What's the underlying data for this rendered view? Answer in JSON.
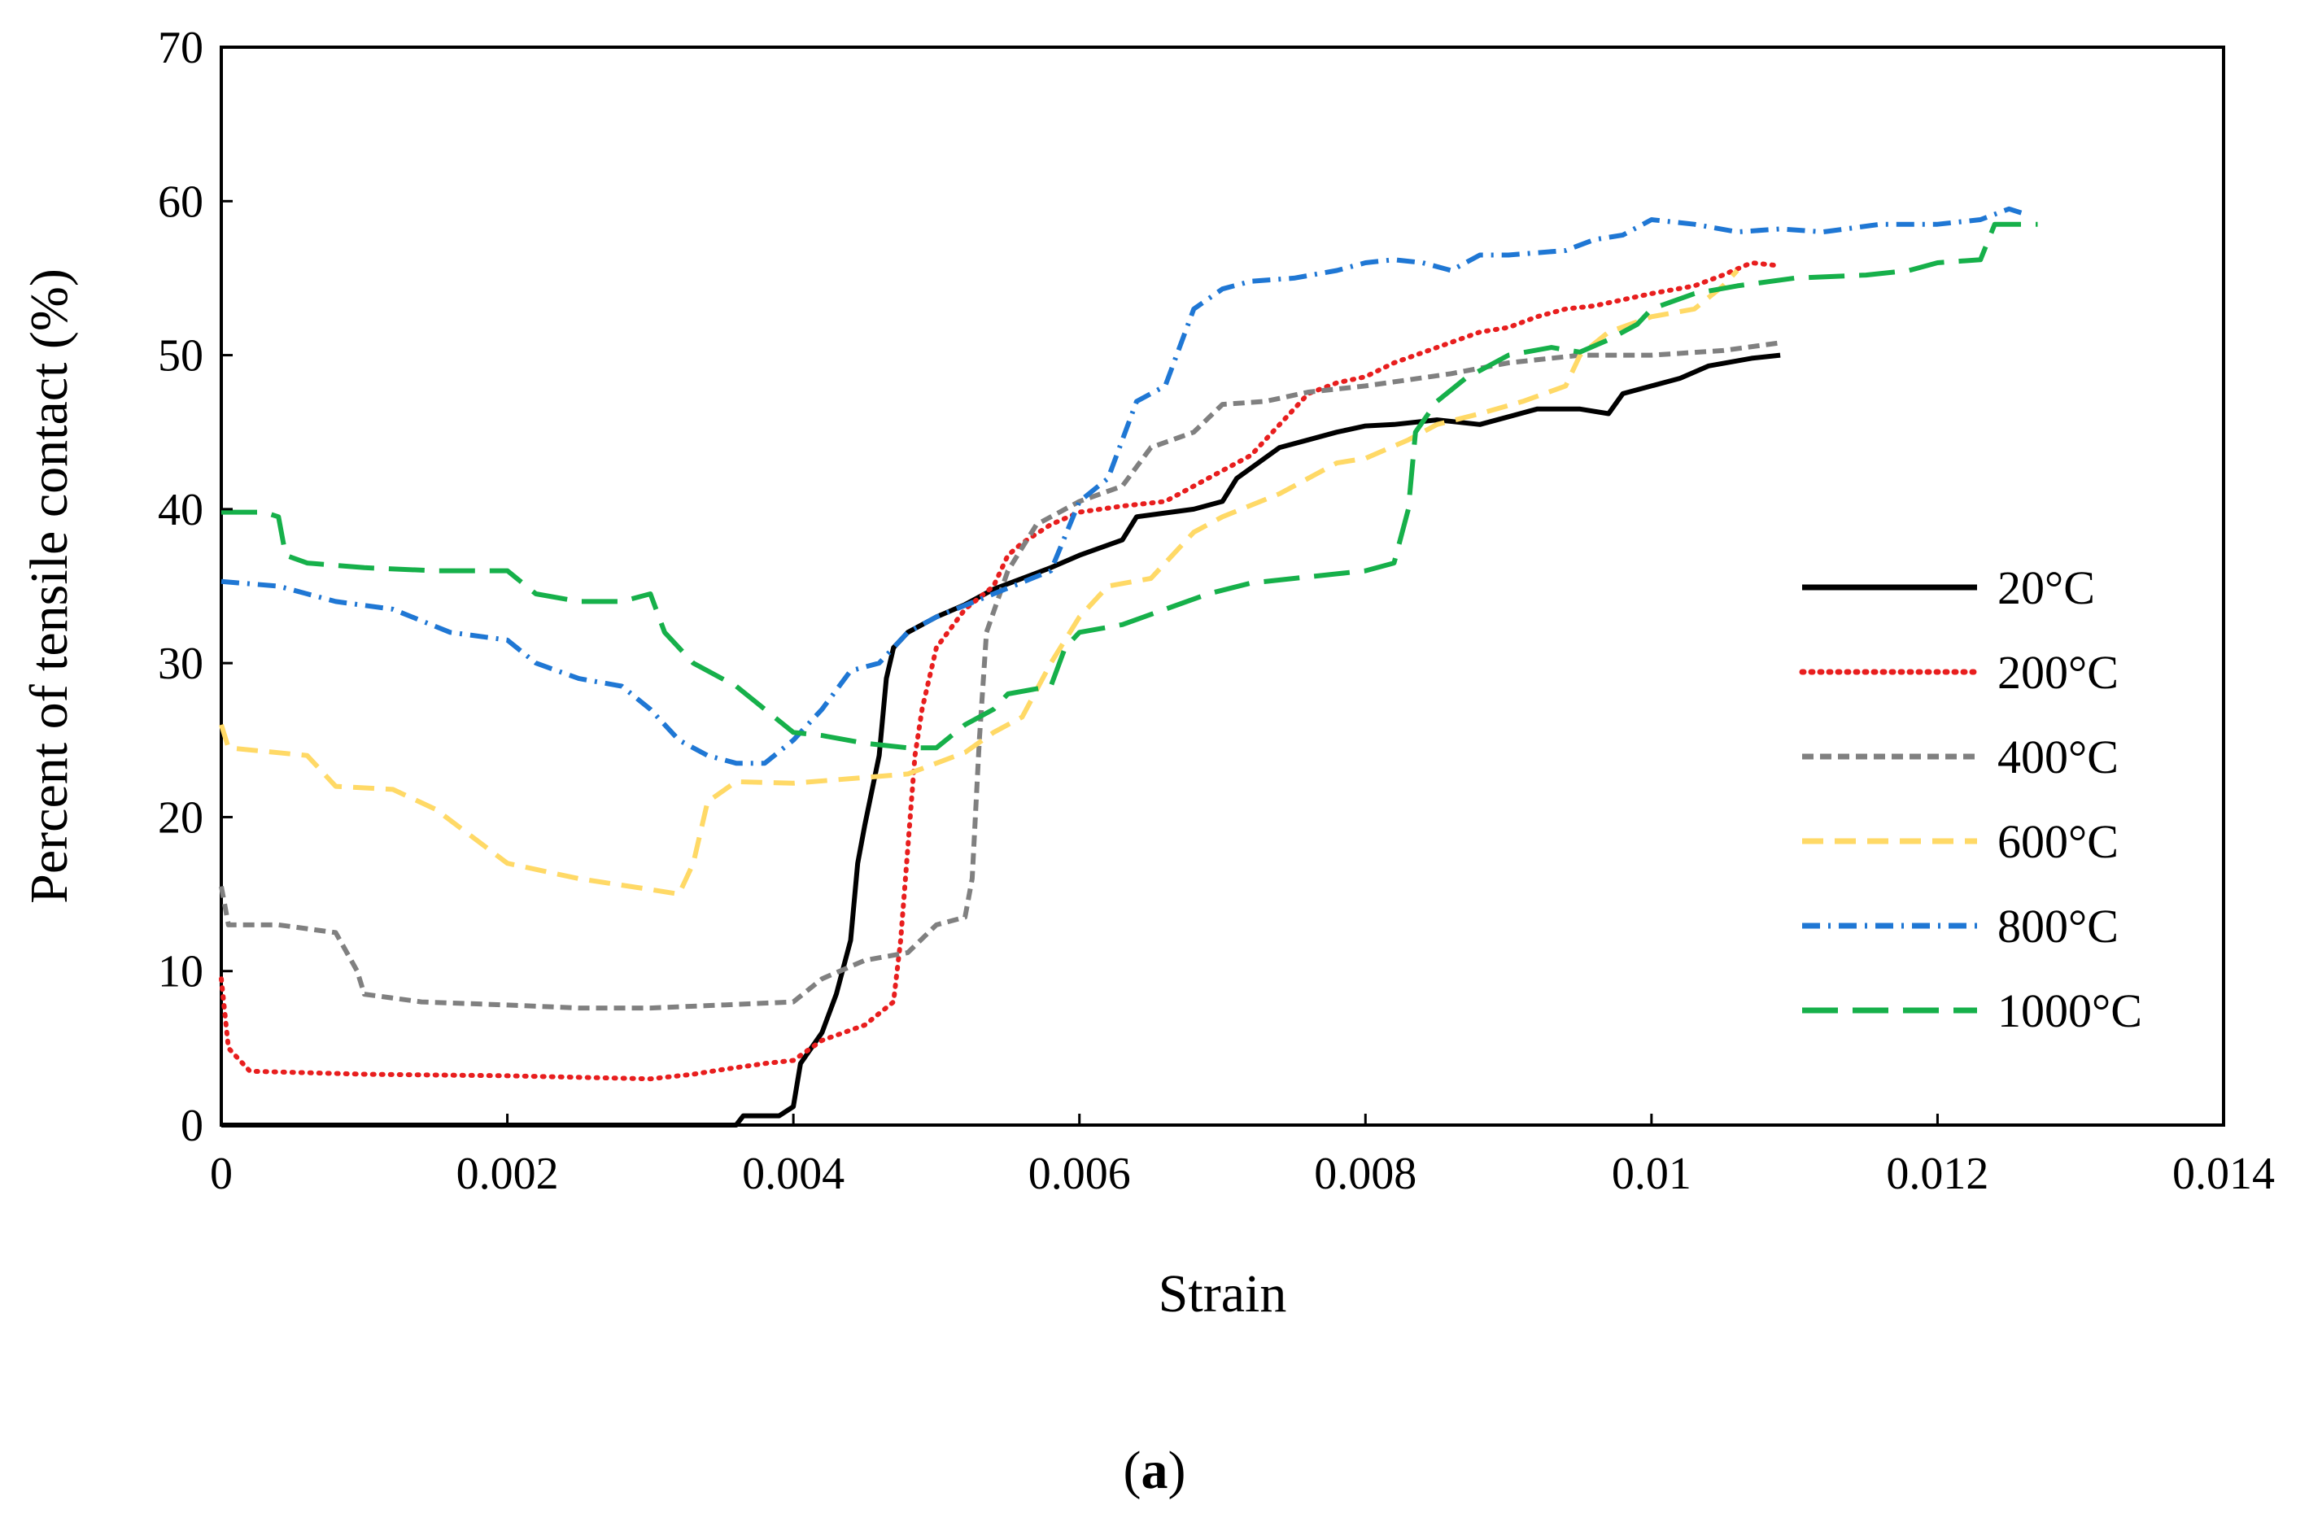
{
  "chart_data": {
    "type": "line",
    "title": "",
    "xlabel": "Strain",
    "ylabel": "Percent of  tensile contact (%)",
    "xlim": [
      0,
      0.014
    ],
    "ylim": [
      0,
      70
    ],
    "x_ticks": [
      0,
      0.002,
      0.004,
      0.006,
      0.008,
      0.01,
      0.012,
      0.014
    ],
    "x_tick_labels": [
      "0",
      "0.002",
      "0.004",
      "0.006",
      "0.008",
      "0.01",
      "0.012",
      "0.014"
    ],
    "y_ticks": [
      0,
      10,
      20,
      30,
      40,
      50,
      60,
      70
    ],
    "y_tick_labels": [
      "0",
      "10",
      "20",
      "30",
      "40",
      "50",
      "60",
      "70"
    ],
    "grid": false,
    "legend_position": "right",
    "caption": "a",
    "series": [
      {
        "name": "20°C",
        "color": "#000000",
        "dash": "solid",
        "points": [
          [
            0,
            0
          ],
          [
            0.0036,
            0
          ],
          [
            0.00365,
            0.6
          ],
          [
            0.0039,
            0.6
          ],
          [
            0.004,
            1.2
          ],
          [
            0.00405,
            4
          ],
          [
            0.0042,
            6
          ],
          [
            0.0043,
            8.5
          ],
          [
            0.0044,
            12
          ],
          [
            0.00445,
            17
          ],
          [
            0.0045,
            19.5
          ],
          [
            0.0046,
            24
          ],
          [
            0.00465,
            29
          ],
          [
            0.0047,
            31
          ],
          [
            0.0048,
            32
          ],
          [
            0.005,
            33
          ],
          [
            0.0052,
            33.8
          ],
          [
            0.0054,
            34.8
          ],
          [
            0.0056,
            35.5
          ],
          [
            0.0058,
            36.2
          ],
          [
            0.006,
            37
          ],
          [
            0.0063,
            38
          ],
          [
            0.0064,
            39.5
          ],
          [
            0.0068,
            40
          ],
          [
            0.007,
            40.5
          ],
          [
            0.0071,
            42
          ],
          [
            0.0074,
            44
          ],
          [
            0.0076,
            44.5
          ],
          [
            0.0078,
            45
          ],
          [
            0.008,
            45.4
          ],
          [
            0.0082,
            45.5
          ],
          [
            0.0085,
            45.8
          ],
          [
            0.0088,
            45.5
          ],
          [
            0.009,
            46
          ],
          [
            0.0092,
            46.5
          ],
          [
            0.0095,
            46.5
          ],
          [
            0.0097,
            46.2
          ],
          [
            0.0098,
            47.5
          ],
          [
            0.01,
            48
          ],
          [
            0.0102,
            48.5
          ],
          [
            0.0104,
            49.3
          ],
          [
            0.0107,
            49.8
          ],
          [
            0.0109,
            50
          ]
        ]
      },
      {
        "name": "200°C",
        "color": "#e81e1e",
        "dash": "dotted",
        "points": [
          [
            0,
            9.5
          ],
          [
            5e-05,
            5
          ],
          [
            0.0002,
            3.5
          ],
          [
            0.001,
            3.3
          ],
          [
            0.002,
            3.2
          ],
          [
            0.003,
            3
          ],
          [
            0.0033,
            3.3
          ],
          [
            0.0035,
            3.6
          ],
          [
            0.0038,
            4
          ],
          [
            0.004,
            4.2
          ],
          [
            0.0042,
            5.5
          ],
          [
            0.0045,
            6.5
          ],
          [
            0.0047,
            8
          ],
          [
            0.00475,
            12
          ],
          [
            0.0048,
            18
          ],
          [
            0.00485,
            24
          ],
          [
            0.0049,
            27
          ],
          [
            0.005,
            31
          ],
          [
            0.0052,
            33.5
          ],
          [
            0.0054,
            35
          ],
          [
            0.0055,
            37
          ],
          [
            0.0056,
            37.8
          ],
          [
            0.0058,
            39
          ],
          [
            0.006,
            39.8
          ],
          [
            0.0063,
            40.2
          ],
          [
            0.0066,
            40.5
          ],
          [
            0.0068,
            41.5
          ],
          [
            0.007,
            42.5
          ],
          [
            0.0072,
            43.5
          ],
          [
            0.0074,
            45.5
          ],
          [
            0.0076,
            47.5
          ],
          [
            0.0078,
            48.2
          ],
          [
            0.008,
            48.6
          ],
          [
            0.0082,
            49.5
          ],
          [
            0.0085,
            50.5
          ],
          [
            0.0088,
            51.5
          ],
          [
            0.009,
            51.8
          ],
          [
            0.0092,
            52.5
          ],
          [
            0.0094,
            53
          ],
          [
            0.0096,
            53.2
          ],
          [
            0.0098,
            53.6
          ],
          [
            0.01,
            54
          ],
          [
            0.0103,
            54.5
          ],
          [
            0.0105,
            55.2
          ],
          [
            0.0107,
            56
          ],
          [
            0.0109,
            55.8
          ]
        ]
      },
      {
        "name": "400°C",
        "color": "#808080",
        "dash": "dashed-short",
        "points": [
          [
            0,
            15.5
          ],
          [
            5e-05,
            13
          ],
          [
            0.0004,
            13
          ],
          [
            0.0008,
            12.5
          ],
          [
            0.00095,
            10
          ],
          [
            0.001,
            8.5
          ],
          [
            0.0014,
            8
          ],
          [
            0.002,
            7.8
          ],
          [
            0.0025,
            7.6
          ],
          [
            0.003,
            7.6
          ],
          [
            0.0035,
            7.8
          ],
          [
            0.004,
            8
          ],
          [
            0.0042,
            9.5
          ],
          [
            0.0045,
            10.7
          ],
          [
            0.0048,
            11.2
          ],
          [
            0.005,
            13
          ],
          [
            0.0052,
            13.5
          ],
          [
            0.00525,
            16
          ],
          [
            0.0053,
            25
          ],
          [
            0.00535,
            32
          ],
          [
            0.0055,
            36
          ],
          [
            0.0057,
            39
          ],
          [
            0.006,
            40.5
          ],
          [
            0.0063,
            41.5
          ],
          [
            0.0065,
            44
          ],
          [
            0.0068,
            45
          ],
          [
            0.007,
            46.8
          ],
          [
            0.0073,
            47
          ],
          [
            0.0076,
            47.6
          ],
          [
            0.008,
            48
          ],
          [
            0.0083,
            48.4
          ],
          [
            0.0086,
            48.8
          ],
          [
            0.009,
            49.5
          ],
          [
            0.0095,
            50
          ],
          [
            0.01,
            50
          ],
          [
            0.0105,
            50.3
          ],
          [
            0.0109,
            50.8
          ]
        ]
      },
      {
        "name": "600°C",
        "color": "#ffd966",
        "dash": "dashed",
        "points": [
          [
            0,
            26
          ],
          [
            5e-05,
            24.5
          ],
          [
            0.0006,
            24
          ],
          [
            0.0008,
            22
          ],
          [
            0.0012,
            21.8
          ],
          [
            0.0015,
            20.5
          ],
          [
            0.002,
            17
          ],
          [
            0.0025,
            16
          ],
          [
            0.003,
            15.3
          ],
          [
            0.0032,
            15
          ],
          [
            0.0033,
            17
          ],
          [
            0.0034,
            21
          ],
          [
            0.0036,
            22.3
          ],
          [
            0.004,
            22.2
          ],
          [
            0.0044,
            22.5
          ],
          [
            0.0048,
            22.8
          ],
          [
            0.005,
            23.5
          ],
          [
            0.0052,
            24.2
          ],
          [
            0.0054,
            25.5
          ],
          [
            0.0056,
            26.5
          ],
          [
            0.0058,
            30
          ],
          [
            0.006,
            33
          ],
          [
            0.0062,
            35
          ],
          [
            0.0065,
            35.5
          ],
          [
            0.0068,
            38.5
          ],
          [
            0.007,
            39.5
          ],
          [
            0.0074,
            41
          ],
          [
            0.0078,
            43
          ],
          [
            0.008,
            43.3
          ],
          [
            0.0083,
            44.5
          ],
          [
            0.0085,
            45.5
          ],
          [
            0.0088,
            46.2
          ],
          [
            0.0091,
            47
          ],
          [
            0.0094,
            48
          ],
          [
            0.0095,
            50
          ],
          [
            0.0097,
            51.5
          ],
          [
            0.01,
            52.5
          ],
          [
            0.0103,
            53
          ],
          [
            0.0105,
            54.5
          ],
          [
            0.0106,
            55.5
          ]
        ]
      },
      {
        "name": "800°C",
        "color": "#1f77d4",
        "dash": "dashdot",
        "points": [
          [
            0,
            35.3
          ],
          [
            0.0004,
            35
          ],
          [
            0.0006,
            34.5
          ],
          [
            0.0008,
            34
          ],
          [
            0.0012,
            33.5
          ],
          [
            0.0016,
            32
          ],
          [
            0.002,
            31.5
          ],
          [
            0.0022,
            30
          ],
          [
            0.0025,
            29
          ],
          [
            0.0028,
            28.5
          ],
          [
            0.003,
            27
          ],
          [
            0.0032,
            25
          ],
          [
            0.0034,
            24
          ],
          [
            0.0036,
            23.5
          ],
          [
            0.0038,
            23.5
          ],
          [
            0.004,
            25
          ],
          [
            0.0042,
            27
          ],
          [
            0.0044,
            29.5
          ],
          [
            0.0046,
            30
          ],
          [
            0.0048,
            32
          ],
          [
            0.005,
            33
          ],
          [
            0.0054,
            34.5
          ],
          [
            0.0058,
            36
          ],
          [
            0.006,
            40.5
          ],
          [
            0.0062,
            42
          ],
          [
            0.0063,
            44.5
          ],
          [
            0.0064,
            47
          ],
          [
            0.0066,
            48
          ],
          [
            0.0068,
            53
          ],
          [
            0.007,
            54.3
          ],
          [
            0.0072,
            54.8
          ],
          [
            0.0075,
            55
          ],
          [
            0.0078,
            55.5
          ],
          [
            0.008,
            56
          ],
          [
            0.0082,
            56.2
          ],
          [
            0.0084,
            56
          ],
          [
            0.0086,
            55.5
          ],
          [
            0.0088,
            56.5
          ],
          [
            0.009,
            56.5
          ],
          [
            0.0094,
            56.8
          ],
          [
            0.0096,
            57.5
          ],
          [
            0.0098,
            57.8
          ],
          [
            0.01,
            58.8
          ],
          [
            0.0103,
            58.5
          ],
          [
            0.0106,
            58
          ],
          [
            0.0109,
            58.2
          ],
          [
            0.0112,
            58
          ],
          [
            0.0116,
            58.5
          ],
          [
            0.012,
            58.5
          ],
          [
            0.0123,
            58.8
          ],
          [
            0.0125,
            59.5
          ],
          [
            0.0126,
            59.2
          ]
        ]
      },
      {
        "name": "1000°C",
        "color": "#16b04a",
        "dash": "dashed-long",
        "points": [
          [
            0,
            39.8
          ],
          [
            0.0003,
            39.8
          ],
          [
            0.0004,
            39.5
          ],
          [
            0.00045,
            37
          ],
          [
            0.0006,
            36.5
          ],
          [
            0.001,
            36.2
          ],
          [
            0.0015,
            36
          ],
          [
            0.002,
            36
          ],
          [
            0.0022,
            34.5
          ],
          [
            0.0025,
            34
          ],
          [
            0.0028,
            34
          ],
          [
            0.003,
            34.5
          ],
          [
            0.0031,
            32
          ],
          [
            0.0033,
            30
          ],
          [
            0.0036,
            28.5
          ],
          [
            0.0038,
            27
          ],
          [
            0.004,
            25.5
          ],
          [
            0.0042,
            25.3
          ],
          [
            0.0045,
            24.8
          ],
          [
            0.0048,
            24.5
          ],
          [
            0.005,
            24.5
          ],
          [
            0.0052,
            26
          ],
          [
            0.0054,
            27
          ],
          [
            0.0055,
            28
          ],
          [
            0.0058,
            28.5
          ],
          [
            0.0059,
            31
          ],
          [
            0.006,
            32
          ],
          [
            0.0063,
            32.5
          ],
          [
            0.0066,
            33.5
          ],
          [
            0.0069,
            34.5
          ],
          [
            0.0072,
            35.2
          ],
          [
            0.0075,
            35.5
          ],
          [
            0.0078,
            35.8
          ],
          [
            0.008,
            36
          ],
          [
            0.0082,
            36.5
          ],
          [
            0.0083,
            40
          ],
          [
            0.00835,
            45
          ],
          [
            0.0085,
            47
          ],
          [
            0.0087,
            48.5
          ],
          [
            0.009,
            50
          ],
          [
            0.0093,
            50.5
          ],
          [
            0.0095,
            50.2
          ],
          [
            0.0097,
            51
          ],
          [
            0.0099,
            52
          ],
          [
            0.01,
            53
          ],
          [
            0.0103,
            54
          ],
          [
            0.0106,
            54.5
          ],
          [
            0.011,
            55
          ],
          [
            0.0115,
            55.2
          ],
          [
            0.0118,
            55.5
          ],
          [
            0.012,
            56
          ],
          [
            0.0123,
            56.2
          ],
          [
            0.0124,
            58.5
          ],
          [
            0.0127,
            58.5
          ]
        ]
      }
    ]
  }
}
